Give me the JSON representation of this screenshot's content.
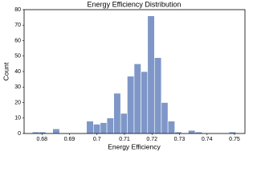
{
  "chart_data": {
    "type": "histogram",
    "title": "Energy Efficiency Distribution",
    "x_label": "Energy Efficiency",
    "y_label": "Count",
    "bins": [
      0.6765,
      0.679,
      0.6814,
      0.6839,
      0.6864,
      0.6888,
      0.6913,
      0.6938,
      0.6962,
      0.6987,
      0.7012,
      0.7036,
      0.7061,
      0.7086,
      0.711,
      0.7135,
      0.716,
      0.7184,
      0.7209,
      0.7234,
      0.7258,
      0.7283,
      0.7308,
      0.7332,
      0.7357,
      0.7382,
      0.7406,
      0.7431,
      0.7456,
      0.748,
      0.7505
    ],
    "values": [
      1,
      1,
      0,
      3,
      0,
      0,
      0,
      0,
      8,
      6,
      7,
      10,
      26,
      13,
      37,
      45,
      40,
      76,
      49,
      20,
      8,
      1,
      0,
      2,
      1,
      0,
      0,
      0,
      0,
      1
    ],
    "color": "#7f97c8",
    "xlim": [
      0.6735,
      0.7538
    ],
    "ylim": [
      0,
      80
    ],
    "xticks": [
      0.68,
      0.69,
      0.7,
      0.71,
      0.72,
      0.73,
      0.74,
      0.75
    ],
    "yticks": [
      0,
      10,
      20,
      30,
      40,
      50,
      60,
      70,
      80
    ]
  }
}
